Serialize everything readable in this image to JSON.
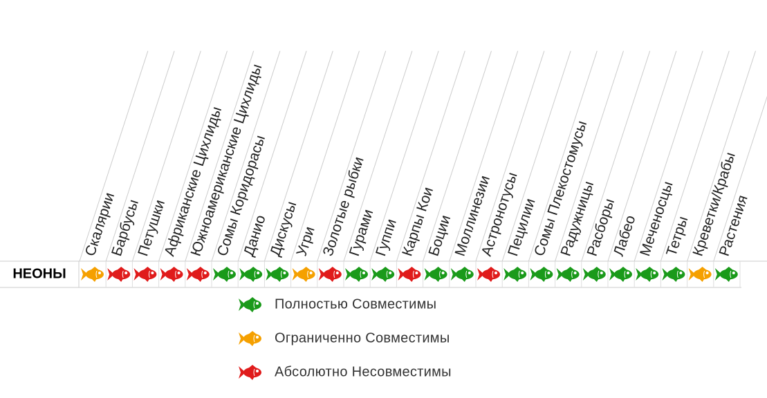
{
  "table": {
    "row_label": "НЕОНЫ",
    "columns": [
      "Скалярии",
      "Барбусы",
      "Петушки",
      "Африканские Цихлиды",
      "Южноамериканские Цихлиды",
      "Сомы Коридорасы",
      "Данио",
      "Дискусы",
      "Угри",
      "Золотые рыбки",
      "Гурами",
      "Гуппи",
      "Карпы Кои",
      "Боции",
      "Моллинезии",
      "Астронотусы",
      "Пецилии",
      "Сомы Плекостомусы",
      "Радужницы",
      "Расборы",
      "Лабео",
      "Меченосцы",
      "Тетры",
      "Креветки/Крабы",
      "Растения"
    ],
    "cells": [
      "#f5a000",
      "#e01b1b",
      "#e01b1b",
      "#e01b1b",
      "#e01b1b",
      "#1a9a1a",
      "#1a9a1a",
      "#1a9a1a",
      "#f5a000",
      "#e01b1b",
      "#1a9a1a",
      "#1a9a1a",
      "#e01b1b",
      "#1a9a1a",
      "#1a9a1a",
      "#e01b1b",
      "#1a9a1a",
      "#1a9a1a",
      "#1a9a1a",
      "#1a9a1a",
      "#1a9a1a",
      "#1a9a1a",
      "#1a9a1a",
      "#f5a000",
      "#1a9a1a"
    ]
  },
  "legend": [
    {
      "label": "Полностью Совместимы",
      "color": "#1a9a1a"
    },
    {
      "label": "Ограниченно Совместимы",
      "color": "#f5a000"
    },
    {
      "label": "Абсолютно Несовместимы",
      "color": "#e01b1b"
    }
  ]
}
